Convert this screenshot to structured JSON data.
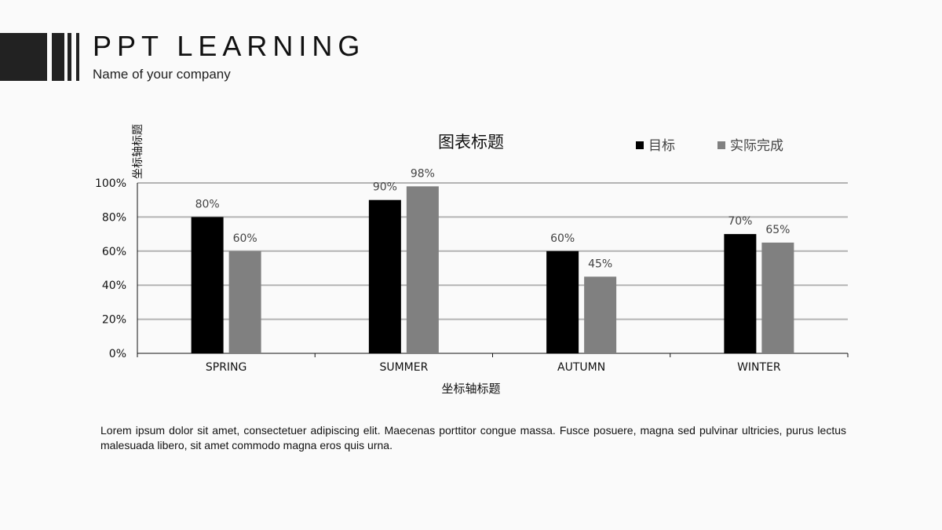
{
  "header": {
    "title": "PPT LEARNING",
    "subtitle": "Name of your company"
  },
  "chart_data": {
    "type": "bar",
    "title": "图表标题",
    "xlabel": "坐标轴标题",
    "ylabel": "坐标轴标题",
    "categories": [
      "SPRING",
      "SUMMER",
      "AUTUMN",
      "WINTER"
    ],
    "series": [
      {
        "name": "目标",
        "values": [
          80,
          90,
          60,
          70
        ],
        "color": "#000000"
      },
      {
        "name": "实际完成",
        "values": [
          60,
          98,
          45,
          65
        ],
        "color": "#808080"
      }
    ],
    "ylim": [
      0,
      100
    ],
    "yticks": [
      "0%",
      "20%",
      "40%",
      "60%",
      "80%",
      "100%"
    ],
    "value_suffix": "%",
    "grid": true,
    "legend_position": "top-right"
  },
  "body": {
    "paragraph": "Lorem ipsum dolor sit amet, consectetuer adipiscing elit. Maecenas porttitor congue massa. Fusce posuere, magna sed pulvinar ultricies, purus lectus malesuada libero, sit amet commodo magna eros quis urna."
  }
}
